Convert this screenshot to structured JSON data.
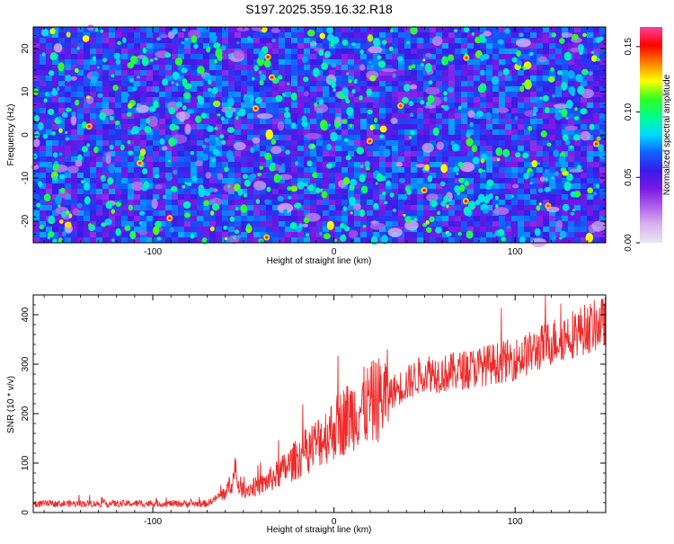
{
  "title": "S197.2025.359.16.32.R18",
  "chart_data": [
    {
      "type": "heatmap",
      "xlabel": "Height of straight line (km)",
      "ylabel": "Frequency (Hz)",
      "xlim": [
        -166,
        150
      ],
      "ylim": [
        -25,
        25
      ],
      "x_ticks": [
        -100,
        0,
        100
      ],
      "x_tick_labels": [
        "-100",
        "0",
        "100"
      ],
      "y_ticks": [
        -20,
        -10,
        0,
        10,
        20
      ],
      "y_tick_labels": [
        "-20",
        "-10",
        "0",
        "10",
        "20"
      ],
      "colorbar": {
        "label": "Normalized spectral amplitude",
        "range": [
          0,
          0.165
        ],
        "ticks": [
          0,
          0.05,
          0.1,
          0.15
        ],
        "tick_labels": [
          "0.00",
          "0.05",
          "0.10",
          "0.15"
        ],
        "colormap": [
          "#e6e6f0",
          "#d8b4f0",
          "#b060e8",
          "#7a1ae6",
          "#3a1ae6",
          "#1060ff",
          "#00d8ff",
          "#00ff90",
          "#30ff20",
          "#ffff00",
          "#ff8000",
          "#ff0000",
          "#ff40a0"
        ]
      },
      "description_values": {
        "background_level": 0.02,
        "peak_level": 0.16
      }
    },
    {
      "type": "line",
      "xlabel": "Height of straight line (km)",
      "ylabel": "SNR (10 * v/v)",
      "xlim": [
        -166,
        150
      ],
      "ylim": [
        0,
        440
      ],
      "x_ticks": [
        -100,
        0,
        100
      ],
      "x_tick_labels": [
        "-100",
        "0",
        "100"
      ],
      "y_ticks": [
        0,
        100,
        200,
        300,
        400
      ],
      "y_tick_labels": [
        "0",
        "100",
        "200",
        "300",
        "400"
      ],
      "series": [
        {
          "name": "SNR",
          "color": "#ee2a2a",
          "trend_x": [
            -166,
            -70,
            -60,
            -55,
            -50,
            -40,
            -30,
            -20,
            -10,
            0,
            10,
            20,
            30,
            40,
            50,
            60,
            80,
            100,
            110,
            120,
            130,
            140,
            150
          ],
          "trend_y": [
            18,
            18,
            40,
            70,
            45,
            55,
            80,
            110,
            140,
            170,
            200,
            220,
            240,
            260,
            285,
            280,
            295,
            310,
            325,
            345,
            360,
            372,
            385
          ]
        }
      ]
    }
  ]
}
